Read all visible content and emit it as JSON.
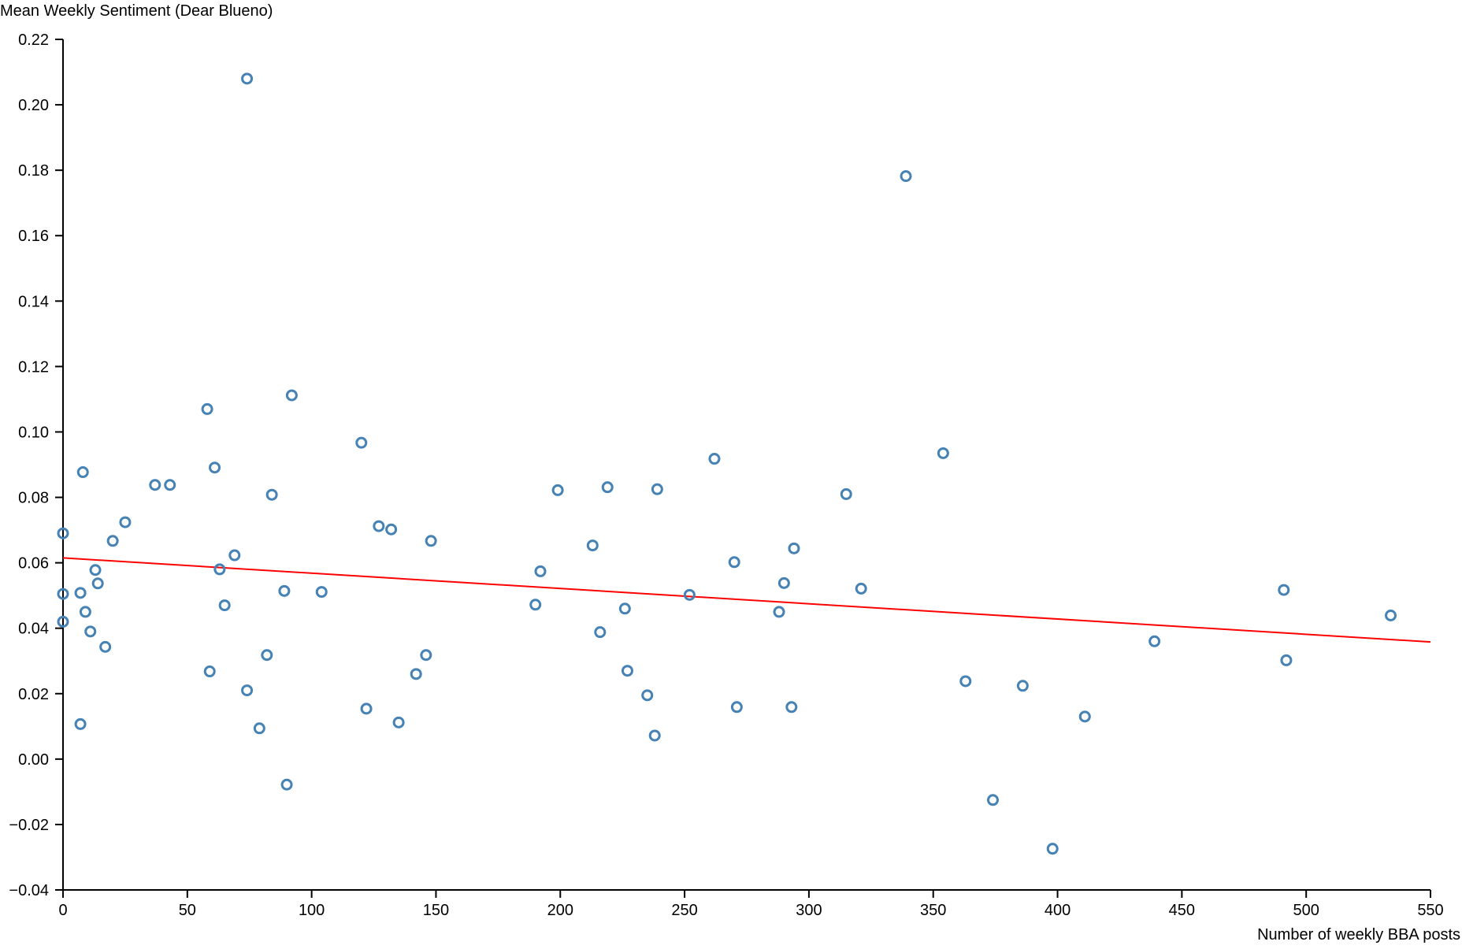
{
  "chart_data": {
    "type": "scatter",
    "title": "",
    "xlabel": "Number of weekly BBA posts",
    "ylabel": "Mean Weekly Sentiment (Dear Blueno)",
    "xlim": [
      0,
      550
    ],
    "ylim": [
      -0.04,
      0.22
    ],
    "x_ticks": [
      0,
      50,
      100,
      150,
      200,
      250,
      300,
      350,
      400,
      450,
      500,
      550
    ],
    "x_tick_labels": [
      "0",
      "50",
      "100",
      "150",
      "200",
      "250",
      "300",
      "350",
      "400",
      "450",
      "500",
      "550"
    ],
    "y_ticks": [
      -0.04,
      -0.02,
      0.0,
      0.02,
      0.04,
      0.06,
      0.08,
      0.1,
      0.12,
      0.14,
      0.16,
      0.18,
      0.2,
      0.22
    ],
    "y_tick_labels": [
      "−0.04",
      "−0.02",
      "0.00",
      "0.02",
      "0.04",
      "0.06",
      "0.08",
      "0.10",
      "0.12",
      "0.14",
      "0.16",
      "0.18",
      "0.20",
      "0.22"
    ],
    "grid": false,
    "legend": "none",
    "point_color": "#4682b4",
    "trend_color": "#ff0000",
    "trendline": {
      "x": [
        0,
        550
      ],
      "y": [
        0.0615,
        0.0358
      ]
    },
    "points": [
      {
        "x": 0,
        "y": 0.069
      },
      {
        "x": 0,
        "y": 0.0505
      },
      {
        "x": 0,
        "y": 0.042
      },
      {
        "x": 7,
        "y": 0.0508
      },
      {
        "x": 7,
        "y": 0.0107
      },
      {
        "x": 8,
        "y": 0.0877
      },
      {
        "x": 9,
        "y": 0.045
      },
      {
        "x": 11,
        "y": 0.039
      },
      {
        "x": 13,
        "y": 0.0578
      },
      {
        "x": 14,
        "y": 0.0537
      },
      {
        "x": 17,
        "y": 0.0343
      },
      {
        "x": 20,
        "y": 0.0667
      },
      {
        "x": 25,
        "y": 0.0724
      },
      {
        "x": 37,
        "y": 0.0838
      },
      {
        "x": 43,
        "y": 0.0838
      },
      {
        "x": 58,
        "y": 0.107
      },
      {
        "x": 59,
        "y": 0.0268
      },
      {
        "x": 61,
        "y": 0.0891
      },
      {
        "x": 63,
        "y": 0.058
      },
      {
        "x": 65,
        "y": 0.047
      },
      {
        "x": 69,
        "y": 0.0623
      },
      {
        "x": 74,
        "y": 0.208
      },
      {
        "x": 74,
        "y": 0.021
      },
      {
        "x": 79,
        "y": 0.0094
      },
      {
        "x": 82,
        "y": 0.0318
      },
      {
        "x": 84,
        "y": 0.0808
      },
      {
        "x": 89,
        "y": 0.0514
      },
      {
        "x": 90,
        "y": -0.0078
      },
      {
        "x": 92,
        "y": 0.1112
      },
      {
        "x": 104,
        "y": 0.0511
      },
      {
        "x": 120,
        "y": 0.0967
      },
      {
        "x": 122,
        "y": 0.0154
      },
      {
        "x": 127,
        "y": 0.0712
      },
      {
        "x": 132,
        "y": 0.0702
      },
      {
        "x": 135,
        "y": 0.0112
      },
      {
        "x": 142,
        "y": 0.026
      },
      {
        "x": 146,
        "y": 0.0318
      },
      {
        "x": 148,
        "y": 0.0667
      },
      {
        "x": 190,
        "y": 0.0472
      },
      {
        "x": 192,
        "y": 0.0574
      },
      {
        "x": 199,
        "y": 0.0822
      },
      {
        "x": 213,
        "y": 0.0653
      },
      {
        "x": 216,
        "y": 0.0388
      },
      {
        "x": 219,
        "y": 0.0831
      },
      {
        "x": 226,
        "y": 0.046
      },
      {
        "x": 227,
        "y": 0.027
      },
      {
        "x": 235,
        "y": 0.0195
      },
      {
        "x": 238,
        "y": 0.0072
      },
      {
        "x": 239,
        "y": 0.0825
      },
      {
        "x": 252,
        "y": 0.0502
      },
      {
        "x": 262,
        "y": 0.0918
      },
      {
        "x": 270,
        "y": 0.0602
      },
      {
        "x": 271,
        "y": 0.0159
      },
      {
        "x": 288,
        "y": 0.045
      },
      {
        "x": 290,
        "y": 0.0538
      },
      {
        "x": 293,
        "y": 0.0159
      },
      {
        "x": 294,
        "y": 0.0644
      },
      {
        "x": 315,
        "y": 0.081
      },
      {
        "x": 321,
        "y": 0.0521
      },
      {
        "x": 339,
        "y": 0.1782
      },
      {
        "x": 354,
        "y": 0.0935
      },
      {
        "x": 363,
        "y": 0.0238
      },
      {
        "x": 374,
        "y": -0.0125
      },
      {
        "x": 386,
        "y": 0.0224
      },
      {
        "x": 398,
        "y": -0.0274
      },
      {
        "x": 411,
        "y": 0.013
      },
      {
        "x": 439,
        "y": 0.036
      },
      {
        "x": 491,
        "y": 0.0517
      },
      {
        "x": 492,
        "y": 0.0302
      },
      {
        "x": 534,
        "y": 0.0439
      }
    ]
  }
}
